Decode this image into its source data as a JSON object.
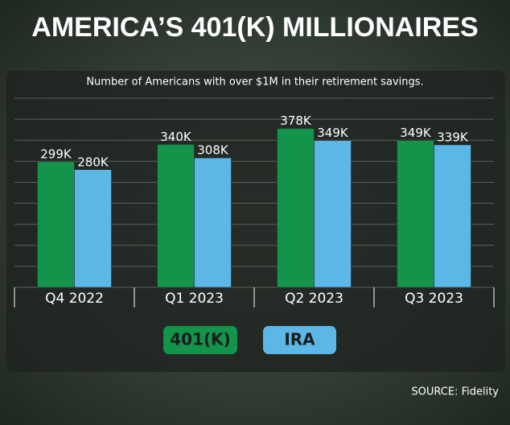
{
  "chart_data": {
    "type": "bar",
    "title": "AMERICA’S 401(K) MILLIONAIRES",
    "subtitle": "Number of Americans with over $1M in their retirement savings.",
    "categories": [
      "Q4 2022",
      "Q1 2023",
      "Q2 2023",
      "Q3 2023"
    ],
    "series": [
      {
        "name": "401(K)",
        "color": "#14934a",
        "values": [
          299000,
          340000,
          378000,
          349000
        ],
        "value_labels": [
          "299K",
          "340K",
          "378K",
          "349K"
        ]
      },
      {
        "name": "IRA",
        "color": "#5cb7e6",
        "values": [
          280000,
          308000,
          349000,
          339000
        ],
        "value_labels": [
          "280K",
          "308K",
          "349K",
          "339K"
        ]
      }
    ],
    "ylim": [
      0,
      450000
    ],
    "yticks": [
      0,
      50000,
      100000,
      150000,
      200000,
      250000,
      300000,
      350000,
      400000,
      450000
    ],
    "grid": true,
    "source": "SOURCE: Fidelity"
  }
}
